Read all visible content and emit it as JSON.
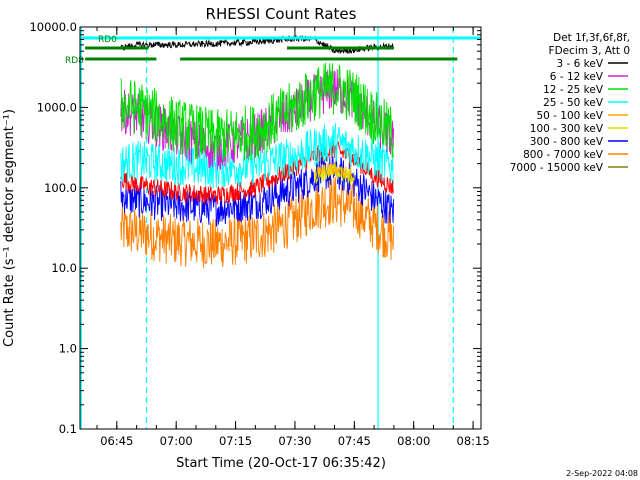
{
  "chart_data": {
    "type": "line",
    "title": "RHESSI Count Rates",
    "xlabel": "Start Time (20-Oct-17 06:35:42)",
    "ylabel": "Count Rate (s⁻¹ detector segment⁻¹)",
    "yscale": "log",
    "ylim": [
      0.1,
      10000
    ],
    "xlim": [
      "06:35:42",
      "08:17:00"
    ],
    "y_ticks": [
      "0.1",
      "1.0",
      "10.0",
      "100.0",
      "1000.0",
      "10000.0"
    ],
    "x_ticks": [
      "06:45",
      "07:00",
      "07:15",
      "07:30",
      "07:45",
      "08:00",
      "08:15"
    ],
    "legend_header": [
      "Det 1f,3f,6f,8f,",
      "FDecim 3, Att 0"
    ],
    "legend_placement": "right",
    "footer_date": "2-Sep-2022 04:08",
    "series": [
      {
        "name": "3 - 6 keV",
        "color": "#000000",
        "x": [
          "06:46",
          "06:50",
          "07:00",
          "07:10",
          "07:20",
          "07:30",
          "07:35",
          "07:40",
          "07:45",
          "07:50",
          "07:55"
        ],
        "values": [
          5500,
          6000,
          6000,
          6200,
          6500,
          7200,
          7000,
          5000,
          5200,
          5600,
          5800
        ]
      },
      {
        "name": "6 - 12 keV",
        "color": "#d020d0",
        "x": [
          "06:46",
          "06:50",
          "07:00",
          "07:10",
          "07:20",
          "07:30",
          "07:35",
          "07:40",
          "07:45",
          "07:50",
          "07:55"
        ],
        "values": [
          900,
          800,
          450,
          300,
          450,
          900,
          1400,
          1700,
          1200,
          650,
          400
        ]
      },
      {
        "name": "12 - 25 keV",
        "color": "#00e000",
        "x": [
          "06:46",
          "06:50",
          "07:00",
          "07:10",
          "07:20",
          "07:30",
          "07:35",
          "07:40",
          "07:45",
          "07:50",
          "07:55"
        ],
        "values": [
          1100,
          1000,
          600,
          420,
          500,
          1000,
          1500,
          1800,
          1350,
          750,
          450
        ]
      },
      {
        "name": "25 - 50 keV",
        "color": "#00ffff",
        "x": [
          "06:46",
          "06:50",
          "07:00",
          "07:10",
          "07:20",
          "07:30",
          "07:35",
          "07:40",
          "07:45",
          "07:50",
          "07:55"
        ],
        "values": [
          200,
          220,
          190,
          170,
          190,
          250,
          320,
          380,
          300,
          230,
          180
        ]
      },
      {
        "name": "50 - 100 keV",
        "color": "#ffa500",
        "x": [
          "07:35",
          "07:40",
          "07:45"
        ],
        "values": [
          150,
          170,
          140
        ]
      },
      {
        "name": "100 - 300 keV",
        "color": "#e0e000",
        "x": [
          "07:35",
          "07:40",
          "07:45"
        ],
        "values": [
          140,
          160,
          130
        ]
      },
      {
        "name": "300 - 800 keV",
        "color": "#0000ff",
        "x": [
          "06:46",
          "06:50",
          "07:00",
          "07:10",
          "07:20",
          "07:30",
          "07:35",
          "07:40",
          "07:45",
          "07:50",
          "07:55"
        ],
        "values": [
          80,
          70,
          60,
          55,
          65,
          100,
          140,
          160,
          120,
          75,
          50
        ]
      },
      {
        "name": "800 - 7000 keV",
        "color": "#ff8000",
        "x": [
          "06:46",
          "06:50",
          "07:00",
          "07:10",
          "07:20",
          "07:30",
          "07:35",
          "07:40",
          "07:45",
          "07:50",
          "07:55"
        ],
        "values": [
          30,
          28,
          22,
          20,
          24,
          40,
          60,
          70,
          55,
          35,
          22
        ]
      },
      {
        "name": "7000 - 15000 keV",
        "color": "#808000",
        "x": [],
        "values": []
      },
      {
        "name": "",
        "color": "#ff0000",
        "x": [
          "06:46",
          "06:50",
          "07:00",
          "07:10",
          "07:20",
          "07:30",
          "07:35",
          "07:40",
          "07:45",
          "07:50",
          "07:55"
        ],
        "values": [
          130,
          110,
          90,
          80,
          100,
          180,
          250,
          300,
          230,
          140,
          100
        ]
      }
    ],
    "attenuator_bars": [
      {
        "label": "RD0",
        "color": "#00ffff",
        "ranges": [
          [
            "06:35:42",
            "08:17:00"
          ]
        ]
      },
      {
        "label": "",
        "color": "#008000",
        "ranges": [
          [
            "06:37:00",
            "06:53:00"
          ],
          [
            "07:28:00",
            "07:55:00"
          ]
        ]
      },
      {
        "label": "RD8",
        "color": "#008000",
        "ranges": [
          [
            "06:37:00",
            "06:55:00"
          ],
          [
            "07:01:00",
            "08:11:00"
          ]
        ]
      }
    ],
    "vertical_markers": [
      {
        "x": "06:36:00",
        "color": "#00ffff",
        "style": "solid"
      },
      {
        "x": "06:52:30",
        "color": "#00ffff",
        "style": "dashed"
      },
      {
        "x": "07:51:00",
        "color": "#00ffff",
        "style": "solid"
      },
      {
        "x": "08:10:00",
        "color": "#00ffff",
        "style": "dashed"
      }
    ]
  }
}
